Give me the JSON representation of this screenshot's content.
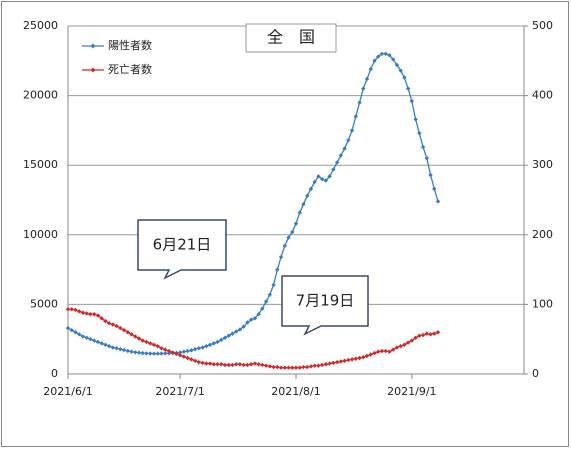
{
  "chart_data": {
    "type": "line",
    "title": "全　国",
    "annotations": [
      "6月21日",
      "7月19日"
    ],
    "x": [
      "2021/6/1",
      "2021/6/2",
      "2021/6/3",
      "2021/6/4",
      "2021/6/5",
      "2021/6/6",
      "2021/6/7",
      "2021/6/8",
      "2021/6/9",
      "2021/6/10",
      "2021/6/11",
      "2021/6/12",
      "2021/6/13",
      "2021/6/14",
      "2021/6/15",
      "2021/6/16",
      "2021/6/17",
      "2021/6/18",
      "2021/6/19",
      "2021/6/20",
      "2021/6/21",
      "2021/6/22",
      "2021/6/23",
      "2021/6/24",
      "2021/6/25",
      "2021/6/26",
      "2021/6/27",
      "2021/6/28",
      "2021/6/29",
      "2021/6/30",
      "2021/7/1",
      "2021/7/2",
      "2021/7/3",
      "2021/7/4",
      "2021/7/5",
      "2021/7/6",
      "2021/7/7",
      "2021/7/8",
      "2021/7/9",
      "2021/7/10",
      "2021/7/11",
      "2021/7/12",
      "2021/7/13",
      "2021/7/14",
      "2021/7/15",
      "2021/7/16",
      "2021/7/17",
      "2021/7/18",
      "2021/7/19",
      "2021/7/20",
      "2021/7/21",
      "2021/7/22",
      "2021/7/23",
      "2021/7/24",
      "2021/7/25",
      "2021/7/26",
      "2021/7/27",
      "2021/7/28",
      "2021/7/29",
      "2021/7/30",
      "2021/7/31",
      "2021/8/1",
      "2021/8/2",
      "2021/8/3",
      "2021/8/4",
      "2021/8/5",
      "2021/8/6",
      "2021/8/7",
      "2021/8/8",
      "2021/8/9",
      "2021/8/10",
      "2021/8/11",
      "2021/8/12",
      "2021/8/13",
      "2021/8/14",
      "2021/8/15",
      "2021/8/16",
      "2021/8/17",
      "2021/8/18",
      "2021/8/19",
      "2021/8/20",
      "2021/8/21",
      "2021/8/22",
      "2021/8/23",
      "2021/8/24",
      "2021/8/25",
      "2021/8/26",
      "2021/8/27",
      "2021/8/28",
      "2021/8/29",
      "2021/8/30",
      "2021/8/31",
      "2021/9/1",
      "2021/9/2",
      "2021/9/3",
      "2021/9/4",
      "2021/9/5",
      "2021/9/6",
      "2021/9/7",
      "2021/9/8"
    ],
    "series": [
      {
        "name": "陽性者数",
        "color": "#3a7cc4",
        "values": [
          3300,
          3150,
          3000,
          2850,
          2700,
          2600,
          2500,
          2400,
          2300,
          2200,
          2100,
          2000,
          1900,
          1850,
          1780,
          1720,
          1660,
          1600,
          1560,
          1530,
          1500,
          1480,
          1470,
          1460,
          1460,
          1470,
          1480,
          1490,
          1500,
          1520,
          1550,
          1600,
          1650,
          1700,
          1780,
          1850,
          1900,
          2000,
          2100,
          2200,
          2300,
          2450,
          2600,
          2750,
          2900,
          3050,
          3200,
          3400,
          3700,
          3900,
          4000,
          4300,
          4700,
          5200,
          5700,
          6400,
          7500,
          8400,
          9200,
          9800,
          10200,
          10800,
          11600,
          12200,
          12800,
          13300,
          13800,
          14200,
          14000,
          13900,
          14200,
          14700,
          15200,
          15700,
          16200,
          16800,
          17500,
          18500,
          19500,
          20500,
          21200,
          21900,
          22500,
          22800,
          23000,
          23000,
          22900,
          22600,
          22200,
          21800,
          21300,
          20500,
          19600,
          18300,
          17300,
          16300,
          15500,
          14300,
          13300,
          12400
        ]
      },
      {
        "name": "死亡者数",
        "color": "#d02a2a",
        "axis": "y2",
        "values": [
          93,
          93,
          92,
          90,
          88,
          87,
          86,
          86,
          84,
          80,
          76,
          73,
          71,
          69,
          66,
          63,
          60,
          57,
          54,
          51,
          48,
          46,
          44,
          42,
          40,
          37,
          35,
          33,
          31,
          29,
          27,
          25,
          23,
          21,
          19,
          17,
          16,
          15,
          15,
          14,
          14,
          14,
          13,
          13,
          13,
          14,
          14,
          13,
          13,
          14,
          15,
          14,
          13,
          12,
          11,
          10,
          10,
          9,
          9,
          9,
          9,
          9,
          9,
          10,
          10,
          11,
          12,
          12,
          13,
          14,
          15,
          16,
          17,
          18,
          19,
          20,
          21,
          22,
          23,
          24,
          26,
          28,
          30,
          32,
          33,
          33,
          32,
          35,
          38,
          40,
          42,
          45,
          48,
          52,
          55,
          56,
          58,
          57,
          58,
          60
        ]
      }
    ],
    "xlim": [
      "2021/6/1",
      "2021/10/1"
    ],
    "xticks": [
      "2021/6/1",
      "2021/7/1",
      "2021/8/1",
      "2021/9/1"
    ],
    "ylim": [
      0,
      25000
    ],
    "yticks": [
      0,
      5000,
      10000,
      15000,
      20000,
      25000
    ],
    "y2lim": [
      0,
      500
    ],
    "y2ticks": [
      0,
      100,
      200,
      300,
      400,
      500
    ],
    "grid": true,
    "legend": "top-left"
  }
}
